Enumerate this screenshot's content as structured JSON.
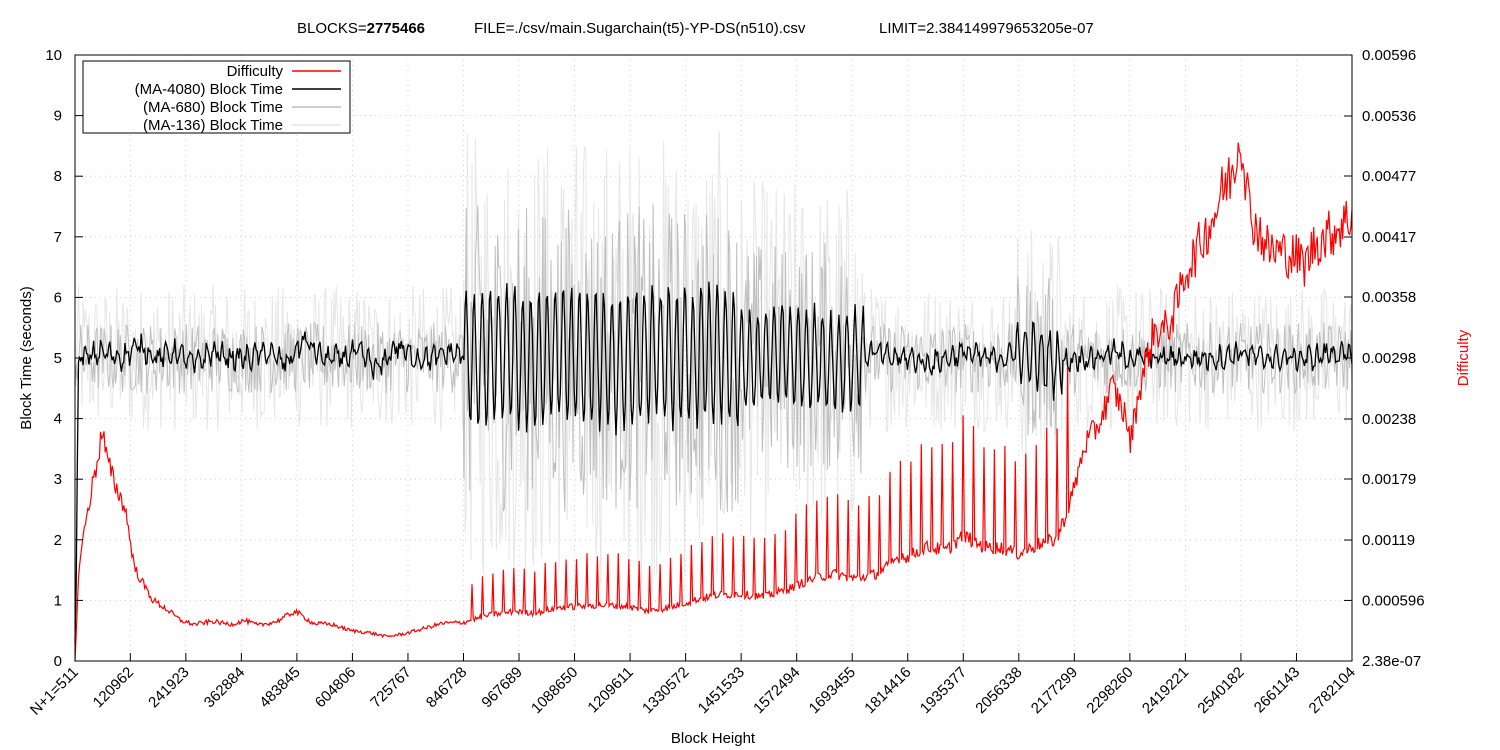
{
  "header": {
    "blocks_label": "BLOCKS=",
    "blocks_value": "2775466",
    "file_text": "FILE=./csv/main.Sugarchain(t5)-YP-DS(n510).csv",
    "limit_text": "LIMIT=2.384149979653205e-07"
  },
  "colors": {
    "difficulty": "#ff0000",
    "ma4080": "#000000",
    "ma680": "#bebebe",
    "ma136": "#e6e6e6",
    "grid": "#c8c8c8"
  },
  "chart_data": {
    "type": "line",
    "title": "",
    "xlabel": "Block Height",
    "ylabel": "Block Time (seconds)",
    "y2label": "Difficulty",
    "xlim": [
      511,
      2782104
    ],
    "ylim": [
      0,
      10
    ],
    "y2lim": [
      2.38e-07,
      0.00596
    ],
    "x_tick_values": [
      511,
      120962,
      241923,
      362884,
      483845,
      604806,
      725767,
      846728,
      967689,
      1088650,
      1209611,
      1330572,
      1451533,
      1572494,
      1693455,
      1814416,
      1935377,
      2056338,
      2177299,
      2298260,
      2419221,
      2540182,
      2661143,
      2782104
    ],
    "x_tick_labels": [
      "N+1=511",
      "120962",
      "241923",
      "362884",
      "483845",
      "604806",
      "725767",
      "846728",
      "967689",
      "1088650",
      "1209611",
      "1330572",
      "1451533",
      "1572494",
      "1693455",
      "1814416",
      "1935377",
      "2056338",
      "2177299",
      "2298260",
      "2419221",
      "2540182",
      "2661143",
      "2782104"
    ],
    "y_ticks": [
      0,
      1,
      2,
      3,
      4,
      5,
      6,
      7,
      8,
      9,
      10
    ],
    "y_tick_labels": [
      "0",
      "1",
      "2",
      "3",
      "4",
      "5",
      "6",
      "7",
      "8",
      "9",
      "10"
    ],
    "y2_ticks": [
      2.38e-07,
      0.000596,
      0.00119,
      0.00179,
      0.00238,
      0.00298,
      0.00358,
      0.00417,
      0.00477,
      0.00536,
      0.00596
    ],
    "y2_tick_labels": [
      "2.38e-07",
      "0.000596",
      "0.00119",
      "0.00179",
      "0.00238",
      "0.00298",
      "0.00358",
      "0.00417",
      "0.00477",
      "0.00536",
      "0.00596"
    ],
    "grid": true,
    "legend_position": "top-left",
    "legend": [
      "Difficulty",
      "(MA-4080) Block Time",
      "(MA-680) Block Time",
      "(MA-136) Block Time"
    ],
    "series": [
      {
        "name": "Difficulty",
        "axis": "y2",
        "x": [
          511,
          10000,
          30000,
          50000,
          60000,
          70000,
          90000,
          110000,
          130000,
          150000,
          170000,
          200000,
          230000,
          260000,
          300000,
          340000,
          370000,
          400000,
          440000,
          480000,
          520000,
          560000,
          600000,
          640000,
          680000,
          720000,
          760000,
          800000,
          846728,
          900000,
          960000,
          1000000,
          1050000,
          1100000,
          1150000,
          1200000,
          1250000,
          1300000,
          1350000,
          1400000,
          1450000,
          1500000,
          1550000,
          1600000,
          1650000,
          1700000,
          1750000,
          1800000,
          1814416,
          1850000,
          1900000,
          1935377,
          1980000,
          2020000,
          2056338,
          2100000,
          2140000,
          2177299,
          2200000,
          2230000,
          2260000,
          2290000,
          2298260,
          2320000,
          2350000,
          2380000,
          2400000,
          2419221,
          2450000,
          2480000,
          2500000,
          2520000,
          2540182,
          2560000,
          2600000,
          2640000,
          2661143,
          2680000,
          2700000,
          2740000,
          2782104
        ],
        "values": [
          2.38e-07,
          0.00098,
          0.00153,
          0.00199,
          0.00228,
          0.00198,
          0.00171,
          0.0015,
          0.00092,
          0.00075,
          0.0006,
          0.00051,
          0.0004,
          0.00036,
          0.00039,
          0.00036,
          0.0004,
          0.00035,
          0.00039,
          0.00049,
          0.00037,
          0.00036,
          0.0003,
          0.00028,
          0.00024,
          0.00027,
          0.00032,
          0.00037,
          0.00038,
          0.00045,
          0.00049,
          0.00047,
          0.00052,
          0.00054,
          0.00055,
          0.00054,
          0.00049,
          0.00053,
          0.0006,
          0.00065,
          0.00066,
          0.00063,
          0.0007,
          0.0008,
          0.00086,
          0.00081,
          0.00086,
          0.00104,
          0.00102,
          0.00112,
          0.00109,
          0.00124,
          0.00112,
          0.00111,
          0.00105,
          0.00115,
          0.0012,
          0.0017,
          0.00213,
          0.00232,
          0.0027,
          0.0024,
          0.00214,
          0.00269,
          0.00324,
          0.00327,
          0.0035,
          0.00382,
          0.00409,
          0.00436,
          0.00463,
          0.00479,
          0.00519,
          0.0044,
          0.00405,
          0.00401,
          0.00398,
          0.00389,
          0.0041,
          0.00422,
          0.00438
        ]
      },
      {
        "name": "(MA-4080) Block Time",
        "axis": "y",
        "x": [
          511,
          2000,
          4000,
          8000,
          20000,
          60000,
          100000,
          140000,
          180000,
          220000,
          260000,
          300000,
          340000,
          380000,
          420000,
          460000,
          500000,
          540000,
          580000,
          620000,
          660000,
          700000,
          740000,
          780000,
          820000,
          860000,
          900000,
          940000,
          980000,
          1020000,
          1060000,
          1100000,
          1140000,
          1180000,
          1220000,
          1260000,
          1300000,
          1340000,
          1380000,
          1420000,
          1460000,
          1500000,
          1540000,
          1580000,
          1620000,
          1660000,
          1700000,
          1740000,
          1780000,
          1820000,
          1860000,
          1900000,
          1940000,
          1980000,
          2020000,
          2060000,
          2100000,
          2140000,
          2180000,
          2220000,
          2260000,
          2300000,
          2340000,
          2380000,
          2420000,
          2460000,
          2500000,
          2540000,
          2580000,
          2620000,
          2660000,
          2700000,
          2740000,
          2782104
        ],
        "values": [
          0.3,
          0.5,
          2.0,
          5.0,
          5.0,
          5.1,
          5.0,
          5.2,
          5.0,
          5.1,
          4.9,
          5.1,
          5.0,
          5.0,
          5.1,
          4.9,
          5.3,
          5.0,
          5.0,
          5.1,
          4.8,
          5.2,
          5.0,
          5.0,
          5.1,
          5.0,
          5.0,
          5.1,
          4.9,
          5.0,
          5.1,
          5.0,
          5.0,
          4.9,
          5.0,
          5.1,
          5.0,
          5.0,
          5.1,
          5.0,
          4.9,
          5.0,
          5.1,
          5.0,
          5.0,
          4.9,
          5.0,
          5.1,
          5.0,
          5.0,
          4.9,
          5.0,
          5.1,
          5.0,
          5.0,
          5.1,
          5.0,
          4.9,
          5.0,
          5.0,
          5.1,
          5.0,
          5.0,
          5.0,
          5.0,
          5.0,
          5.0,
          5.1,
          5.0,
          5.0,
          5.0,
          5.0,
          5.1,
          5.0
        ]
      },
      {
        "name": "(MA-680) Block Time",
        "axis": "y",
        "x": [
          511,
          2782104
        ],
        "values": [
          5.0,
          5.0
        ]
      },
      {
        "name": "(MA-136) Block Time",
        "axis": "y",
        "x": [
          511,
          2782104
        ],
        "values": [
          5.0,
          5.0
        ]
      }
    ]
  }
}
